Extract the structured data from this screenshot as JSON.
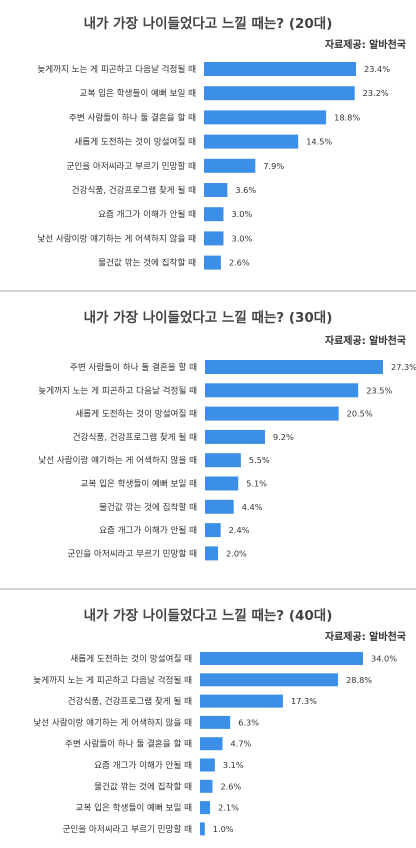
{
  "chart_data": [
    {
      "type": "bar",
      "title": "내가 가장 나이들었다고 느낄 때는? (20대)",
      "source": "자료제공: 알바천국",
      "value_labels": [
        "23.4%",
        "23.2%",
        "18.8%",
        "14.5%",
        "7.9%",
        "3.6%",
        "3.0%",
        "3.0%",
        "2.6%"
      ],
      "categories": [
        "늦게까지 노는 게 피곤하고 다음날 걱정될 때",
        "교복 입은 학생들이 예뻐 보일 때",
        "주변 사람들이 하나 둘 결혼을 할 때",
        "새롭게 도전하는 것이 망설여질 때",
        "군인을 아저씨라고 부르기 민망할 때",
        "건강식품, 건강프로그램 찾게 될 때",
        "요즘 개그가 이해가 안될 때",
        "낯선 사람이랑 얘기하는 게 어색하지 않을 때",
        "물건값 깎는 것에 집착할 때"
      ],
      "values": [
        23.4,
        23.2,
        18.8,
        14.5,
        7.9,
        3.6,
        3.0,
        3.0,
        2.6
      ],
      "color": "#3c8fe6"
    },
    {
      "type": "bar",
      "title": "내가 가장 나이들었다고 느낄 때는? (30대)",
      "source": "자료제공: 알바천국",
      "value_labels": [
        "27.3%",
        "23.5%",
        "20.5%",
        "9.2%",
        "5.5%",
        "5.1%",
        "4.4%",
        "2.4%",
        "2.0%"
      ],
      "categories": [
        "주변 사람들이 하나 둘 결혼을 할 때",
        "늦게까지 노는 게 피곤하고 다음날 걱정될 때",
        "새롭게 도전하는 것이 망설여질 때",
        "건강식품, 건강프로그램 찾게 될 때",
        "낯선 사람이랑 얘기하는 게 어색하지 않을 때",
        "교복 입은 학생들이 예뻐 보일 때",
        "물건값 깎는 것에 집착할 때",
        "요즘 개그가 이해가 안될 때",
        "군인을 아저씨라고 부르기 민망할 때"
      ],
      "values": [
        27.3,
        23.5,
        20.5,
        9.2,
        5.5,
        5.1,
        4.4,
        2.4,
        2.0
      ],
      "color": "#3c8fe6"
    },
    {
      "type": "bar",
      "title": "내가 가장 나이들었다고 느낄 때는? (40대)",
      "source": "자료제공: 알바천국",
      "value_labels": [
        "34.0%",
        "28.8%",
        "17.3%",
        "6.3%",
        "4.7%",
        "3.1%",
        "2.6%",
        "2.1%",
        "1.0%"
      ],
      "categories": [
        "새롭게 도전하는 것이 망설여질 때",
        "늦게까지 노는 게 피곤하고 다음날 걱정될 때",
        "건강식품, 건강프로그램 찾게 될 때",
        "낯선 사람이랑 얘기하는 게 어색하지 않을 때",
        "주변 사람들이 하나 둘 결혼을 할 때",
        "요즘 개그가 이해가 안될 때",
        "물건값 깎는 것에 집착할 때",
        "교복 입은 학생들이 예뻐 보일 때",
        "군인을 아저씨라고 부르기 민망할 때"
      ],
      "values": [
        34.0,
        28.8,
        17.3,
        6.3,
        4.7,
        3.1,
        2.6,
        2.1,
        1.0
      ],
      "color": "#3c8fe6"
    }
  ]
}
